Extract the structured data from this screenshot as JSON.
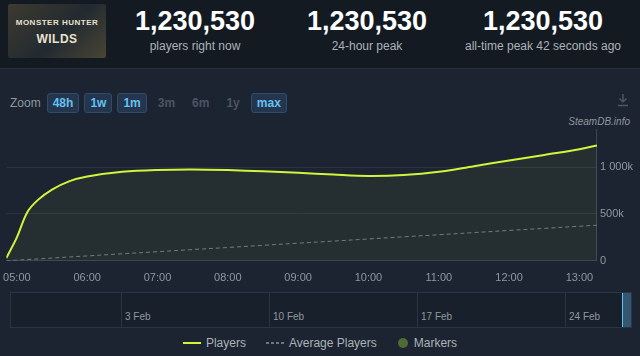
{
  "header": {
    "logo_text": [
      "MONSTER HUNTER",
      "WILDS"
    ],
    "stats": [
      {
        "value": "1,230,530",
        "label": "players right now"
      },
      {
        "value": "1,230,530",
        "label": "24-hour peak"
      },
      {
        "value": "1,230,530",
        "label": "all-time peak 42 seconds ago"
      }
    ]
  },
  "zoom": {
    "label": "Zoom",
    "buttons": [
      {
        "label": "48h",
        "enabled": true
      },
      {
        "label": "1w",
        "enabled": true
      },
      {
        "label": "1m",
        "enabled": true
      },
      {
        "label": "3m",
        "enabled": false
      },
      {
        "label": "6m",
        "enabled": false
      },
      {
        "label": "1y",
        "enabled": false
      },
      {
        "label": "max",
        "enabled": true
      }
    ]
  },
  "watermark": "SteamDB.info",
  "chart_data": {
    "type": "line",
    "x": [
      4.85,
      5.0,
      5.15,
      5.3,
      5.5,
      5.75,
      6.0,
      6.5,
      7.0,
      7.5,
      8.0,
      8.5,
      9.0,
      9.5,
      10.0,
      10.5,
      11.0,
      11.5,
      12.0,
      12.5,
      13.0,
      13.25
    ],
    "series": [
      {
        "name": "Players",
        "color": "#d2f53c",
        "line_style": "solid",
        "values": [
          30000,
          250000,
          520000,
          650000,
          760000,
          850000,
          900000,
          950000,
          970000,
          975000,
          968000,
          955000,
          940000,
          920000,
          905000,
          915000,
          950000,
          1010000,
          1070000,
          1130000,
          1190000,
          1230530
        ]
      },
      {
        "name": "Average Players",
        "color": "#6b7684",
        "line_style": "dashed",
        "values": [
          0,
          7000,
          14000,
          20000,
          29000,
          41000,
          52000,
          75000,
          97000,
          120000,
          142000,
          165000,
          188000,
          210000,
          233000,
          256000,
          278000,
          301000,
          324000,
          346000,
          369000,
          380000
        ]
      }
    ],
    "xlim": [
      4.85,
      13.25
    ],
    "xticks": [
      {
        "value": 5,
        "label": "05:00"
      },
      {
        "value": 6,
        "label": "06:00"
      },
      {
        "value": 7,
        "label": "07:00"
      },
      {
        "value": 8,
        "label": "08:00"
      },
      {
        "value": 9,
        "label": "09:00"
      },
      {
        "value": 10,
        "label": "10:00"
      },
      {
        "value": 11,
        "label": "11:00"
      },
      {
        "value": 12,
        "label": "12:00"
      },
      {
        "value": 13,
        "label": "13:00"
      }
    ],
    "ylim": [
      0,
      1400000
    ],
    "yticks": [
      0,
      {
        "value": 500000,
        "label": "500k"
      },
      {
        "value": 1000000,
        "label": "1 000k"
      }
    ],
    "grid": true,
    "legend": "bottom"
  },
  "navigator": {
    "labels": [
      "3 Feb",
      "10 Feb",
      "17 Feb",
      "24 Feb"
    ]
  },
  "legend_extra": [
    {
      "label": "Markers",
      "color": "#4e6b36",
      "marker": "circle"
    }
  ]
}
